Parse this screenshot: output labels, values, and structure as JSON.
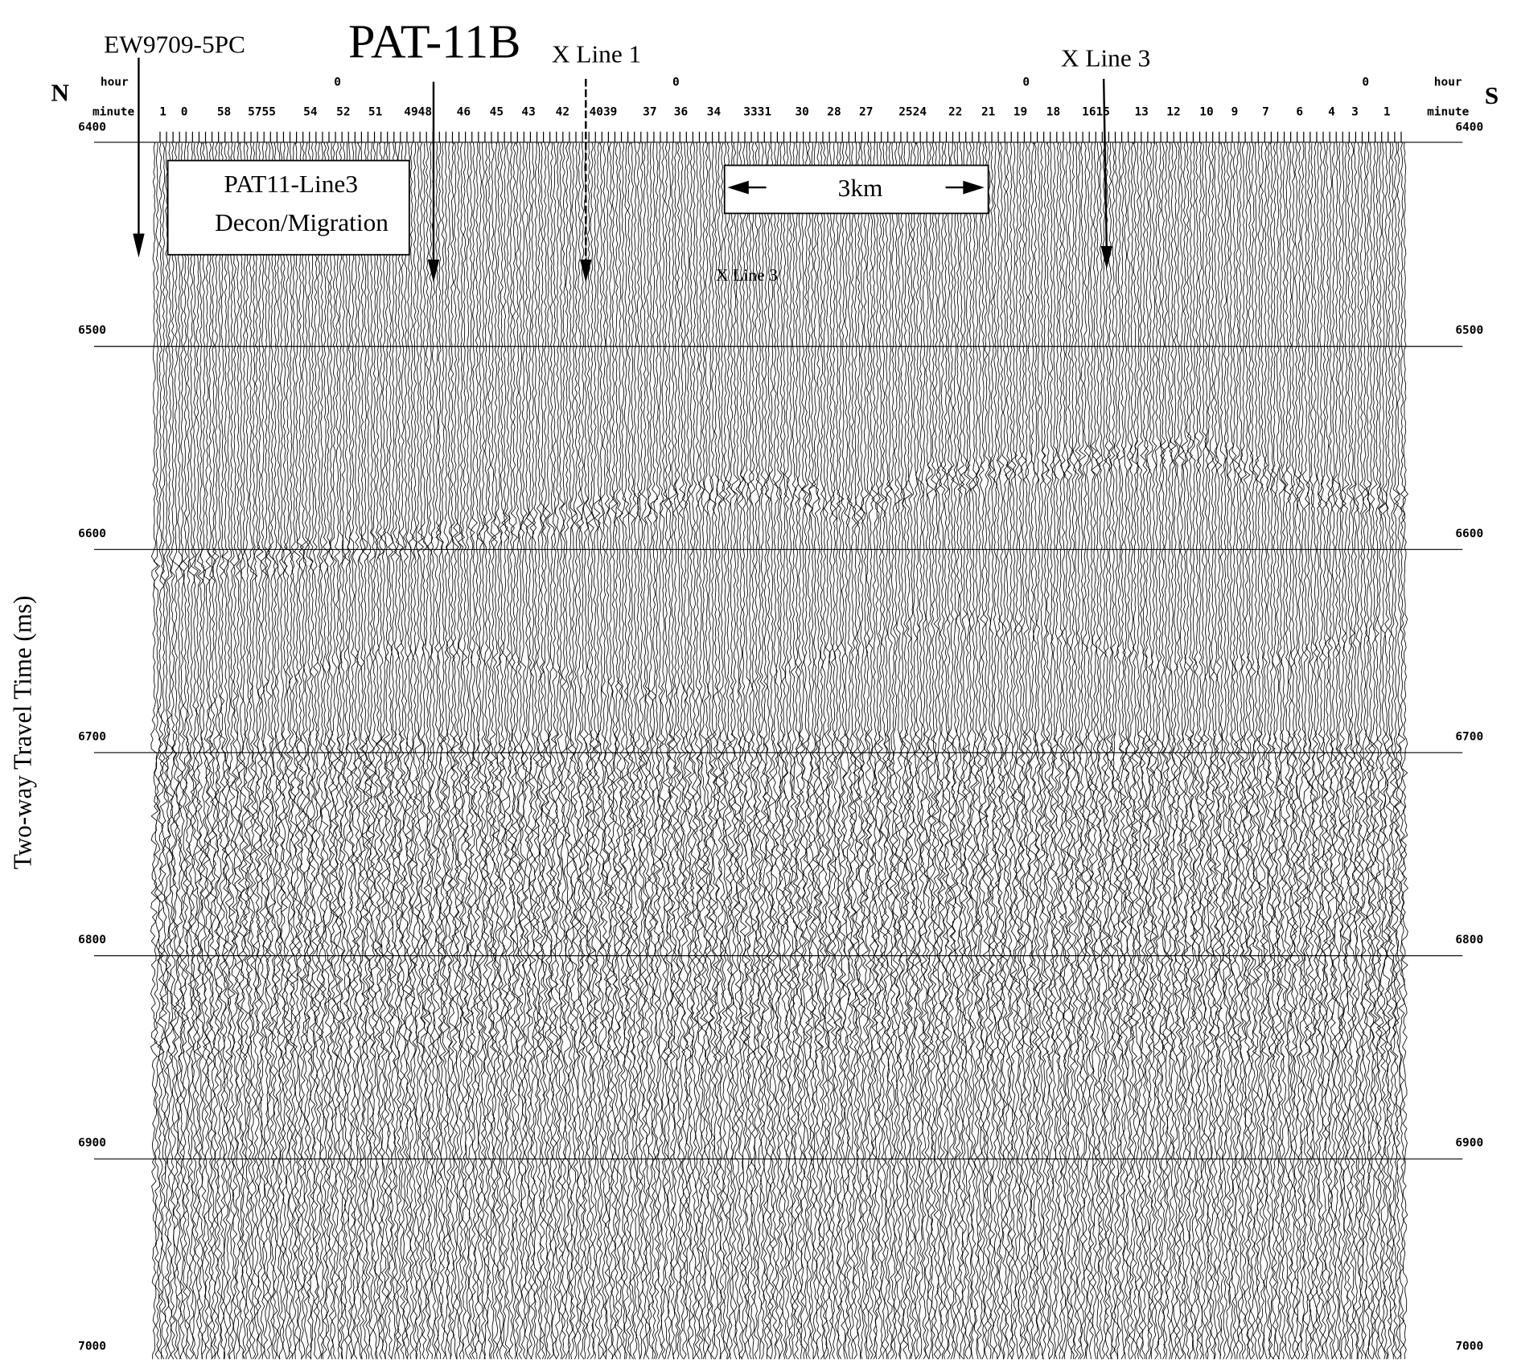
{
  "chart_data": {
    "type": "seismic",
    "title": "PAT-11B",
    "y_label": "Two-way Travel Time (ms)",
    "left_label": "N",
    "right_label": "S",
    "hour_label": "hour",
    "minute_label": "minute",
    "hour_ticks": [
      0,
      0,
      0,
      0
    ],
    "minute_ticks": [
      "1",
      "0",
      "58",
      "5755",
      "54",
      "52",
      "51",
      "4948",
      "46",
      "45",
      "43",
      "42",
      "4039",
      "37",
      "36",
      "34",
      "3331",
      "30",
      "28",
      "27",
      "2524",
      "22",
      "21",
      "19",
      "18",
      "1615",
      "13",
      "12",
      "10",
      "9",
      "7",
      "6",
      "4",
      "3",
      "1"
    ],
    "ylim": [
      6400,
      7000
    ],
    "yticks": [
      6400,
      6500,
      6600,
      6700,
      6800,
      6900,
      7000
    ],
    "grid": true,
    "annotations": {
      "core": "EW9709-5PC",
      "xline1": "X Line 1",
      "xline3": "X Line 3",
      "xline3_small": "X Line 3",
      "box_line1": "PAT11-Line3",
      "box_line2": "Decon/Migration",
      "scale": "3km"
    }
  }
}
